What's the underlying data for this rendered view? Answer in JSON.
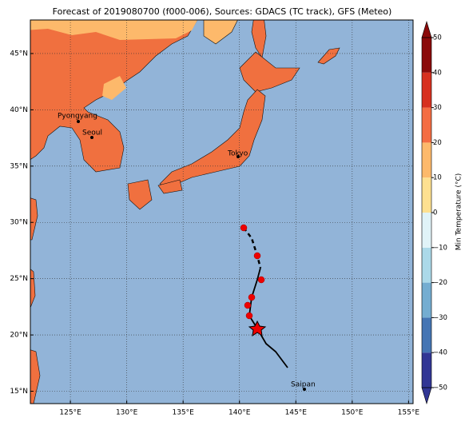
{
  "map": {
    "title": "Forecast of 2019080700 (f000-006), Sources: GDACS (TC track), GFS (Meteo)",
    "lonlim": [
      121.45,
      155.4
    ],
    "latlim": [
      13.9,
      47.98
    ],
    "lonticks": [
      {
        "value": 125,
        "label": "125°E"
      },
      {
        "value": 130,
        "label": "130°E"
      },
      {
        "value": 135,
        "label": "135°E"
      },
      {
        "value": 140,
        "label": "140°E"
      },
      {
        "value": 145,
        "label": "145°E"
      },
      {
        "value": 150,
        "label": "150°E"
      },
      {
        "value": 155,
        "label": "155°E"
      }
    ],
    "latticks": [
      {
        "value": 15,
        "label": "15°N"
      },
      {
        "value": 20,
        "label": "20°N"
      },
      {
        "value": 25,
        "label": "25°N"
      },
      {
        "value": 30,
        "label": "30°N"
      },
      {
        "value": 35,
        "label": "35°N"
      },
      {
        "value": 40,
        "label": "40°N"
      },
      {
        "value": 45,
        "label": "45°N"
      }
    ],
    "cities": [
      "Pyongyang",
      "Seoul",
      "Tokyo",
      "Saipan"
    ],
    "colorbar": {
      "label": "Min Temperature (°C)",
      "lim": [
        -50,
        50
      ],
      "ticks": [
        {
          "value": -50,
          "label": "−50"
        },
        {
          "value": -40,
          "label": "−40"
        },
        {
          "value": -30,
          "label": "−30"
        },
        {
          "value": -20,
          "label": "−20"
        },
        {
          "value": -10,
          "label": "−10"
        },
        0,
        10,
        20,
        30,
        40,
        50
      ],
      "colors": [
        "#313695",
        "#4575b4",
        "#74add1",
        "#abd9e9",
        "#e0f3f8",
        "#fee090",
        "#fdb96b",
        "#f46d43",
        "#d7301f",
        "#8b0a0a"
      ]
    }
  }
}
